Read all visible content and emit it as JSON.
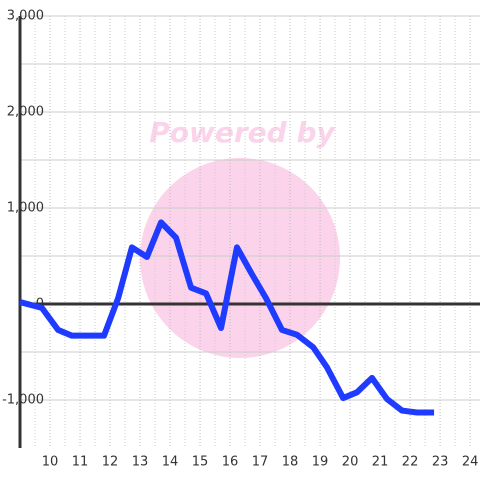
{
  "chart_data": {
    "type": "line",
    "watermark": "Powered by",
    "x": [
      9,
      9.73,
      10.27,
      10.73,
      11.8,
      12.27,
      12.73,
      13.23,
      13.7,
      14.2,
      14.7,
      15.2,
      15.7,
      16.23,
      16.73,
      17.2,
      17.73,
      18.23,
      18.77,
      19.23,
      19.77,
      20.23,
      20.73,
      21.23,
      21.73,
      22.23,
      22.8
    ],
    "series": [
      {
        "color": "#1f3bff",
        "values": [
          20,
          -40,
          -270,
          -330,
          -330,
          60,
          590,
          490,
          850,
          690,
          170,
          110,
          -250,
          590,
          310,
          60,
          -270,
          -320,
          -450,
          -660,
          -980,
          -920,
          -770,
          -990,
          -1110,
          -1130,
          -1130
        ]
      }
    ],
    "xlim": [
      9,
      24.33
    ],
    "ylim": [
      -1500,
      3000
    ],
    "xticks": [
      10,
      11,
      12,
      13,
      14,
      15,
      16,
      17,
      18,
      19,
      20,
      21,
      22,
      23,
      24
    ],
    "xminorticks": [
      9.5,
      10.5,
      11.5,
      12.5,
      13.5,
      14.5,
      15.5,
      16.5,
      17.5,
      18.5,
      19.5,
      20.5,
      21.5,
      22.5,
      23.5
    ],
    "yticks": [
      {
        "value": -1000,
        "label": "-1,000"
      },
      0,
      {
        "value": 1000,
        "label": "1,000"
      },
      {
        "value": 2000,
        "label": "2,000"
      },
      {
        "value": 3000,
        "label": "3,000"
      }
    ],
    "yminorticks": [
      -500,
      500,
      1500,
      2500
    ],
    "grid": true
  }
}
